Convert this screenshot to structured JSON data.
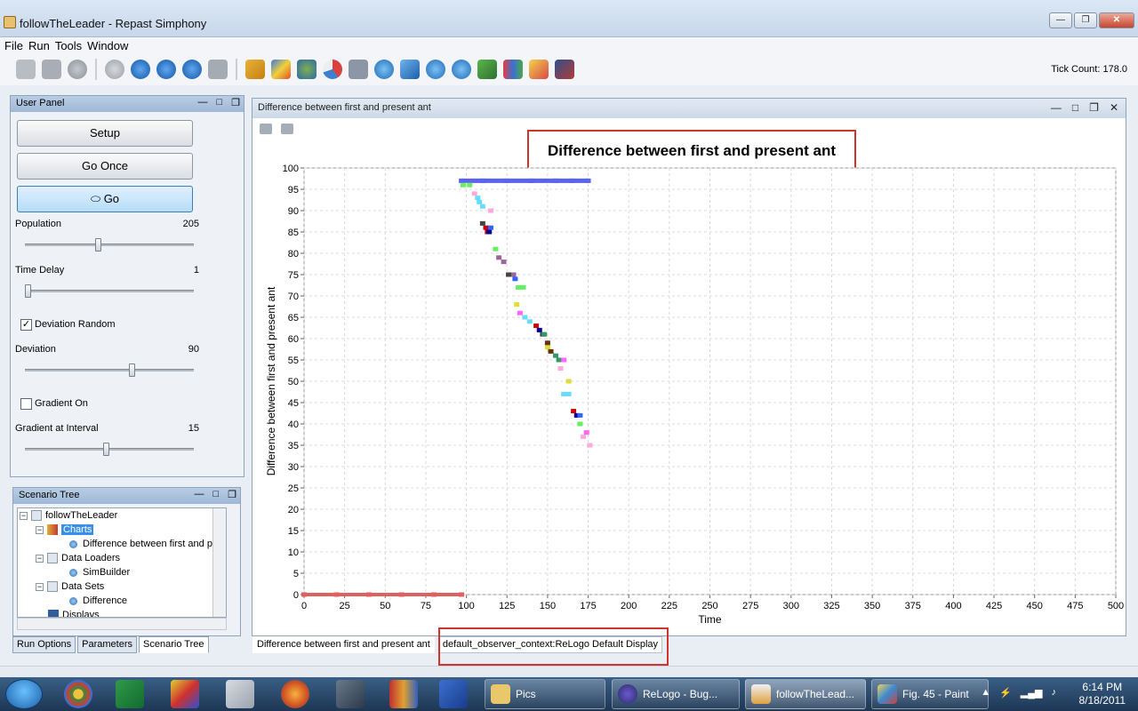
{
  "window": {
    "title": "followTheLeader - Repast Simphony"
  },
  "menu": [
    "File",
    "Run",
    "Tools",
    "Window"
  ],
  "toolbar": {
    "tick_count": "Tick Count: 178.0"
  },
  "user_panel": {
    "title": "User Panel",
    "buttons": {
      "setup": "Setup",
      "go_once": "Go Once",
      "go": "Go"
    },
    "population": {
      "label": "Population",
      "value": "205",
      "fraction": 0.43
    },
    "time_delay": {
      "label": "Time Delay",
      "value": "1",
      "fraction": 0.0
    },
    "deviation_random": {
      "label": "Deviation Random",
      "checked": true
    },
    "deviation": {
      "label": "Deviation",
      "value": "90",
      "fraction": 0.64
    },
    "gradient_on": {
      "label": "Gradient On",
      "checked": false
    },
    "gradient_interval": {
      "label": "Gradient at Interval",
      "value": "15",
      "fraction": 0.48
    }
  },
  "scenario_tree": {
    "title": "Scenario Tree",
    "items": [
      "followTheLeader",
      "Charts",
      "Difference between first and present ant",
      "Data Loaders",
      "SimBuilder",
      "Data Sets",
      "Difference",
      "Displays"
    ]
  },
  "left_tabs": [
    "Run Options",
    "Parameters",
    "Scenario Tree"
  ],
  "chart_panel": {
    "header": "Difference between first and present ant"
  },
  "chart_tabs": [
    "Difference between first and present ant",
    "default_observer_context:ReLogo Default Display"
  ],
  "taskbar": {
    "items": [
      "Pics",
      "ReLogo - Bug...",
      "followTheLead...",
      "Fig. 45 - Paint"
    ],
    "time": "6:14 PM",
    "date": "8/18/2011"
  },
  "chart_data": {
    "type": "scatter",
    "title": "Difference between first and present ant",
    "xlabel": "Time",
    "ylabel": "Difference between first and present ant",
    "xlim": [
      0,
      500
    ],
    "ylim": [
      0,
      100
    ],
    "xticks": [
      0,
      25,
      50,
      75,
      100,
      125,
      150,
      175,
      200,
      225,
      250,
      275,
      300,
      325,
      350,
      375,
      400,
      425,
      450,
      475,
      500
    ],
    "yticks": [
      0,
      5,
      10,
      15,
      20,
      25,
      30,
      35,
      40,
      45,
      50,
      55,
      60,
      65,
      70,
      75,
      80,
      85,
      90,
      95,
      100
    ],
    "grid": true,
    "series": [
      {
        "color": "#5a62ee",
        "points": [
          [
            97,
            97
          ],
          [
            110,
            97
          ],
          [
            125,
            97
          ],
          [
            140,
            97
          ],
          [
            155,
            97
          ],
          [
            165,
            97
          ],
          [
            175,
            97
          ]
        ]
      },
      {
        "color": "#e06060",
        "points": [
          [
            0,
            0
          ],
          [
            20,
            0
          ],
          [
            40,
            0
          ],
          [
            60,
            0
          ],
          [
            80,
            0
          ],
          [
            97,
            0
          ]
        ]
      },
      {
        "color": "#66ee66",
        "points": [
          [
            98,
            96
          ],
          [
            102,
            96
          ],
          [
            118,
            81
          ],
          [
            132,
            72
          ],
          [
            135,
            72
          ],
          [
            170,
            40
          ]
        ]
      },
      {
        "color": "#66ddff",
        "points": [
          [
            107,
            93
          ],
          [
            108,
            92
          ],
          [
            110,
            91
          ],
          [
            136,
            65
          ],
          [
            139,
            64
          ],
          [
            160,
            47
          ],
          [
            163,
            47
          ]
        ]
      },
      {
        "color": "#ffaadd",
        "points": [
          [
            105,
            94
          ],
          [
            115,
            90
          ],
          [
            158,
            53
          ],
          [
            172,
            37
          ],
          [
            176,
            35
          ]
        ]
      },
      {
        "color": "#cc0000",
        "points": [
          [
            112,
            86
          ],
          [
            113,
            85
          ],
          [
            143,
            63
          ],
          [
            166,
            43
          ]
        ]
      },
      {
        "color": "#000099",
        "points": [
          [
            114,
            85
          ],
          [
            145,
            62
          ],
          [
            168,
            42
          ]
        ]
      },
      {
        "color": "#996699",
        "points": [
          [
            120,
            79
          ],
          [
            123,
            78
          ],
          [
            129,
            75
          ]
        ]
      },
      {
        "color": "#444444",
        "points": [
          [
            110,
            87
          ],
          [
            126,
            75
          ],
          [
            147,
            61
          ]
        ]
      },
      {
        "color": "#339966",
        "points": [
          [
            148,
            61
          ],
          [
            155,
            56
          ],
          [
            157,
            55
          ]
        ]
      },
      {
        "color": "#dddd33",
        "points": [
          [
            131,
            68
          ],
          [
            150,
            58
          ],
          [
            163,
            50
          ]
        ]
      },
      {
        "color": "#ff66ff",
        "points": [
          [
            133,
            66
          ],
          [
            160,
            55
          ],
          [
            174,
            38
          ]
        ]
      },
      {
        "color": "#663300",
        "points": [
          [
            150,
            59
          ],
          [
            152,
            57
          ]
        ]
      },
      {
        "color": "#3366ff",
        "points": [
          [
            115,
            86
          ],
          [
            130,
            74
          ],
          [
            170,
            42
          ]
        ]
      }
    ]
  }
}
